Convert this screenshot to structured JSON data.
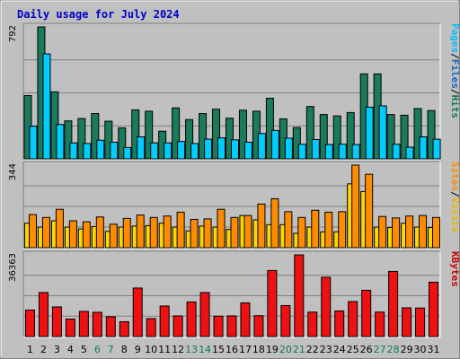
{
  "chart_data": {
    "type": "bar",
    "title": "Daily usage for July 2024",
    "categories": [
      "1",
      "2",
      "3",
      "4",
      "5",
      "6",
      "7",
      "8",
      "9",
      "10",
      "11",
      "12",
      "13",
      "14",
      "15",
      "16",
      "17",
      "18",
      "19",
      "20",
      "21",
      "22",
      "23",
      "24",
      "25",
      "26",
      "27",
      "28",
      "29",
      "30",
      "31"
    ],
    "weekend_days": [
      "6",
      "7",
      "13",
      "14",
      "20",
      "21",
      "27",
      "28"
    ],
    "panels": [
      {
        "id": "hits",
        "ymax_label": "792",
        "ylim": [
          0,
          792
        ],
        "side_labels": [
          {
            "text": "Hits",
            "color": "#0f7a5a"
          },
          {
            "text": "/",
            "color": "#000000"
          },
          {
            "text": "Files",
            "color": "#1565c0"
          },
          {
            "text": "/",
            "color": "#000000"
          },
          {
            "text": "Pages",
            "color": "#00bfff"
          }
        ],
        "series": [
          {
            "name": "Hits",
            "color": "#1a7a5c",
            "values": [
              380,
              792,
              402,
              228,
              242,
              272,
              226,
              186,
              294,
              286,
              166,
              306,
              236,
              272,
              298,
              244,
              292,
              286,
              364,
              240,
              188,
              314,
              266,
              258,
              278,
              510,
              510,
              266,
              262,
              302,
              290
            ]
          },
          {
            "name": "Files",
            "color": "#1565c0",
            "values": [
              196,
              630,
              206,
              96,
              92,
              112,
              100,
              68,
              132,
              96,
              96,
              104,
              92,
              118,
              126,
              114,
              100,
              152,
              170,
              124,
              88,
              116,
              86,
              88,
              86,
              310,
              318,
              88,
              70,
              132,
              118
            ]
          },
          {
            "name": "Pages",
            "color": "#00ccff",
            "values": [
              196,
              630,
              206,
              96,
              92,
              112,
              100,
              68,
              132,
              96,
              96,
              104,
              92,
              118,
              126,
              114,
              100,
              152,
              170,
              124,
              88,
              116,
              86,
              88,
              86,
              310,
              318,
              88,
              70,
              132,
              118
            ]
          }
        ]
      },
      {
        "id": "visits",
        "ymax_label": "344",
        "ylim": [
          0,
          344
        ],
        "side_labels": [
          {
            "text": "Visits",
            "color": "#e6b800"
          },
          {
            "text": "/",
            "color": "#000000"
          },
          {
            "text": "Sites",
            "color": "#ff8c00"
          }
        ],
        "series": [
          {
            "name": "Visits",
            "color": "#ffd700",
            "values": [
              102,
              86,
              112,
              86,
              78,
              88,
              68,
              86,
              90,
              92,
              102,
              86,
              70,
              90,
              86,
              76,
              134,
              116,
              96,
              96,
              60,
              86,
              66,
              66,
              266,
              234,
              86,
              84,
              102,
              86,
              84
            ]
          },
          {
            "name": "Sites",
            "color": "#ff8c00",
            "values": [
              138,
              126,
              160,
              112,
              108,
              128,
              98,
              122,
              136,
              126,
              132,
              148,
              118,
              120,
              160,
              126,
              134,
              182,
              204,
              150,
              126,
              156,
              148,
              150,
              344,
              306,
              130,
              124,
              132,
              134,
              126
            ]
          }
        ]
      },
      {
        "id": "kbytes",
        "ymax_label": "36363",
        "ylim": [
          0,
          36363
        ],
        "side_labels": [
          {
            "text": "KBytes",
            "color": "#cc0000"
          }
        ],
        "series": [
          {
            "name": "KBytes",
            "color": "#ee1111",
            "values": [
              11800,
              19600,
              13200,
              7800,
              11200,
              10800,
              8800,
              6600,
              21600,
              8000,
              13600,
              9200,
              15400,
              19600,
              9100,
              9200,
              15000,
              9300,
              29400,
              13800,
              36363,
              10900,
              26400,
              11400,
              15600,
              20600,
              10900,
              29000,
              12800,
              12700,
              24200
            ]
          }
        ]
      }
    ]
  }
}
